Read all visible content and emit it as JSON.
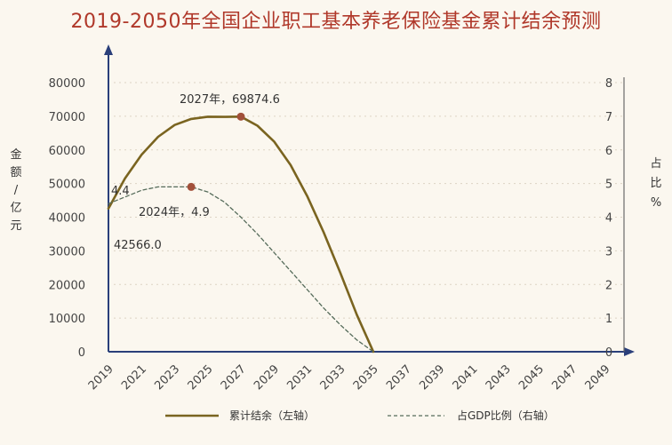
{
  "title": "2019-2050年全国企业职工基本养老保险基金累计结余预测",
  "chart_data": {
    "type": "line",
    "title": "2019-2050年全国企业职工基本养老保险基金累计结余预测",
    "x_ticks": [
      "2019",
      "2021",
      "2023",
      "2025",
      "2027",
      "2029",
      "2031",
      "2033",
      "2035",
      "2037",
      "2039",
      "2041",
      "2043",
      "2045",
      "2047",
      "2049"
    ],
    "x_range": [
      2019,
      2051
    ],
    "ylabel_left": [
      "金",
      "额",
      "/",
      "亿",
      "元"
    ],
    "ylabel_right": [
      "占",
      "比",
      "%"
    ],
    "y_left_range": [
      0,
      80000
    ],
    "y_left_ticks": [
      "0",
      "10000",
      "20000",
      "30000",
      "40000",
      "50000",
      "60000",
      "70000",
      "80000"
    ],
    "y_right_range": [
      0,
      8
    ],
    "y_right_ticks": [
      "0",
      "1",
      "2",
      "3",
      "4",
      "5",
      "6",
      "7",
      "8"
    ],
    "series": [
      {
        "name": "累计结余（左轴）",
        "axis": "left",
        "style": "solid",
        "color": "#7a6420",
        "points": [
          [
            2019,
            42566.0
          ],
          [
            2020,
            51500
          ],
          [
            2021,
            58600
          ],
          [
            2022,
            63900
          ],
          [
            2023,
            67400
          ],
          [
            2024,
            69200
          ],
          [
            2025,
            69850
          ],
          [
            2026,
            69800
          ],
          [
            2027,
            69874.6
          ],
          [
            2028,
            67200
          ],
          [
            2029,
            62500
          ],
          [
            2030,
            55500
          ],
          [
            2031,
            46300
          ],
          [
            2032,
            35500
          ],
          [
            2033,
            23500
          ],
          [
            2034,
            11000
          ],
          [
            2035,
            0
          ]
        ]
      },
      {
        "name": "占GDP比例（右轴）",
        "axis": "right",
        "style": "dashed",
        "color": "#556b5a",
        "points": [
          [
            2019,
            4.4
          ],
          [
            2020,
            4.6
          ],
          [
            2021,
            4.8
          ],
          [
            2022,
            4.9
          ],
          [
            2023,
            4.9
          ],
          [
            2024,
            4.9
          ],
          [
            2025,
            4.75
          ],
          [
            2026,
            4.45
          ],
          [
            2027,
            4.0
          ],
          [
            2028,
            3.5
          ],
          [
            2029,
            2.95
          ],
          [
            2030,
            2.4
          ],
          [
            2031,
            1.85
          ],
          [
            2032,
            1.3
          ],
          [
            2033,
            0.8
          ],
          [
            2034,
            0.35
          ],
          [
            2035,
            0
          ]
        ]
      }
    ],
    "markers": [
      {
        "series": 0,
        "x": 2027,
        "y": 69874.6,
        "color": "#a2503a"
      },
      {
        "series": 1,
        "x": 2024,
        "y": 4.9,
        "color": "#a2503a"
      }
    ],
    "annotations": [
      {
        "text": "2027年，69874.6",
        "anchor": "peak-left-series"
      },
      {
        "text": "2024年，4.9",
        "anchor": "peak-right-series"
      },
      {
        "text": "4.4",
        "anchor": "start-right-series"
      },
      {
        "text": "42566.0",
        "anchor": "start-left-series"
      }
    ],
    "legend_position": "bottom",
    "grid": true
  }
}
